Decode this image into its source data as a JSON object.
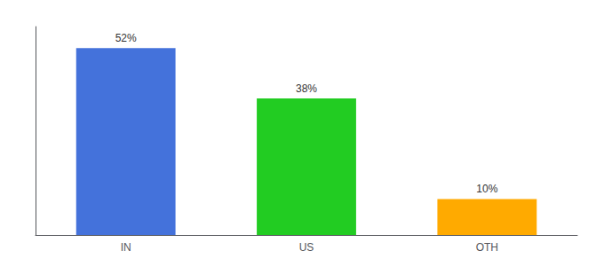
{
  "chart_data": {
    "type": "bar",
    "categories": [
      "IN",
      "US",
      "OTH"
    ],
    "values": [
      52,
      38,
      10
    ],
    "value_labels": [
      "52%",
      "38%",
      "10%"
    ],
    "colors": [
      "#4472db",
      "#22cc22",
      "#ffaa00"
    ],
    "ylim": [
      0,
      58
    ],
    "data_labels": true,
    "tick_labels": "x",
    "grid": false
  }
}
